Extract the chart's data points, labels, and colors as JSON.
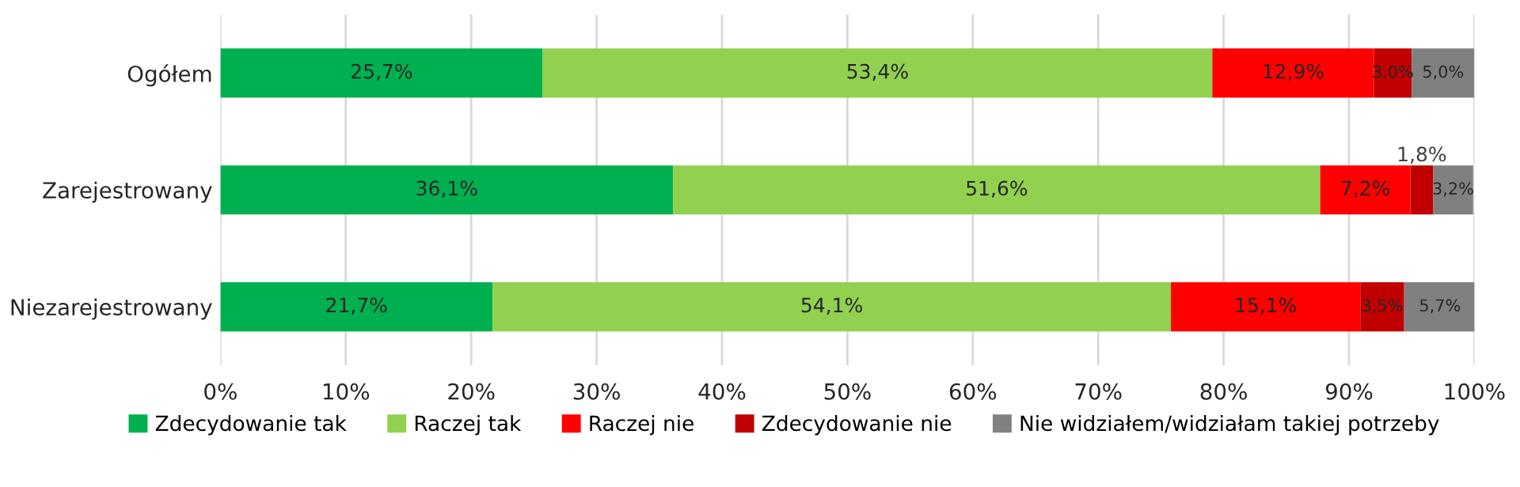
{
  "chart_data": {
    "type": "bar",
    "orientation": "horizontal",
    "stacked": true,
    "categories": [
      "Ogółem",
      "Zarejestrowany",
      "Niezarejestrowany"
    ],
    "series": [
      {
        "name": "Zdecydowanie tak",
        "color": "#00b050",
        "values": [
          25.7,
          36.1,
          21.7
        ],
        "value_labels": [
          "25,7%",
          "36,1%",
          "21,7%"
        ]
      },
      {
        "name": "Raczej tak",
        "color": "#92d050",
        "values": [
          53.4,
          51.6,
          54.1
        ],
        "value_labels": [
          "53,4%",
          "51,6%",
          "54,1%"
        ]
      },
      {
        "name": "Raczej nie",
        "color": "#ff0000",
        "values": [
          12.9,
          7.2,
          15.1
        ],
        "value_labels": [
          "12,9%",
          "7,2%",
          "15,1%"
        ]
      },
      {
        "name": "Zdecydowanie nie",
        "color": "#c00000",
        "values": [
          3.0,
          1.8,
          3.5
        ],
        "value_labels": [
          "3,0%",
          "1,8%",
          "3,5%"
        ]
      },
      {
        "name": "Nie widziałem/widziałam takiej potrzeby",
        "color": "#808080",
        "values": [
          5.0,
          3.2,
          5.7
        ],
        "value_labels": [
          "5,0%",
          "3,2%",
          "5,7%"
        ]
      }
    ],
    "xlim": [
      0,
      100
    ],
    "xticks": [
      {
        "value": 0,
        "label": "0%"
      },
      {
        "value": 10,
        "label": "10%"
      },
      {
        "value": 20,
        "label": "20%"
      },
      {
        "value": 30,
        "label": "30%"
      },
      {
        "value": 40,
        "label": "40%"
      },
      {
        "value": 50,
        "label": "50%"
      },
      {
        "value": 60,
        "label": "60%"
      },
      {
        "value": 70,
        "label": "70%"
      },
      {
        "value": 80,
        "label": "80%"
      },
      {
        "value": 90,
        "label": "90%"
      },
      {
        "value": 100,
        "label": "100%"
      }
    ],
    "grid": "x",
    "legend": "bottom"
  }
}
